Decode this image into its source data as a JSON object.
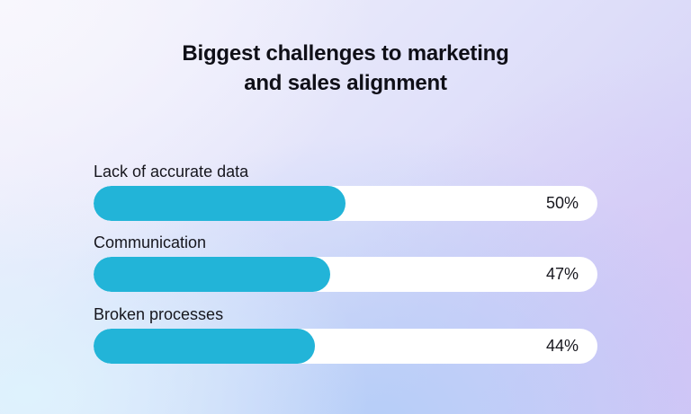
{
  "chart_data": {
    "type": "bar",
    "orientation": "horizontal",
    "title": "Biggest challenges to marketing and sales alignment",
    "title_lines": [
      "Biggest challenges to marketing",
      "and sales alignment"
    ],
    "categories": [
      "Lack of accurate data",
      "Communication",
      "Broken processes"
    ],
    "values": [
      50,
      47,
      44
    ],
    "value_labels": [
      "50%",
      "47%",
      "44%"
    ],
    "unit": "%",
    "xlabel": "",
    "ylabel": "",
    "grid": false,
    "legend": null,
    "colors": {
      "bar": "#22b4d8",
      "track": "#ffffff",
      "text": "#16161d"
    }
  }
}
